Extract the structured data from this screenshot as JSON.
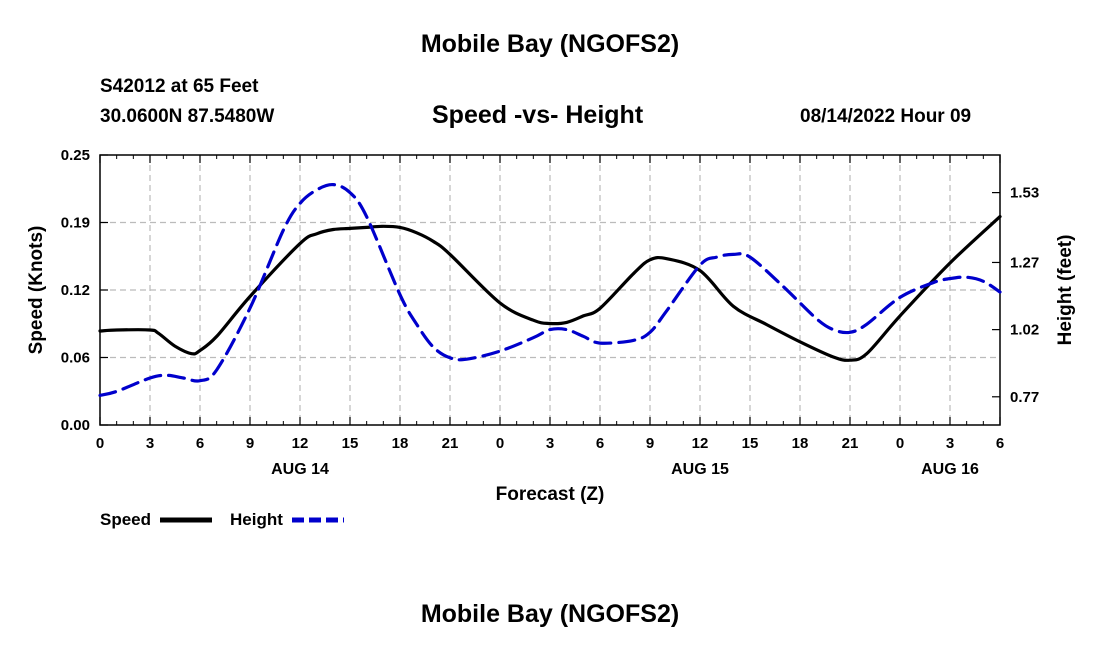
{
  "header": {
    "title": "Mobile Bay (NGOFS2)",
    "station": "S42012 at 65 Feet",
    "coordinates": "30.0600N  87.5480W",
    "subtitle": "Speed -vs- Height",
    "datetime": "08/14/2022 Hour 09"
  },
  "footer": {
    "title": "Mobile Bay (NGOFS2)"
  },
  "legend": {
    "items": [
      {
        "label": "Speed",
        "color": "#000000",
        "style": "solid"
      },
      {
        "label": "Height",
        "color": "#0000cc",
        "style": "dashed"
      }
    ]
  },
  "chart_data": {
    "type": "line",
    "title": "Speed -vs- Height",
    "xlabel": "Forecast (Z)",
    "ylabel": "Speed (Knots)",
    "y2label": "Height (feet)",
    "x_unit": "hours since 08/14 00Z",
    "xlim": [
      0,
      54
    ],
    "ylim": [
      0,
      0.25
    ],
    "y2lim": [
      0.665,
      1.67
    ],
    "grid": true,
    "x_ticks": [
      {
        "x": 0,
        "label": "0"
      },
      {
        "x": 3,
        "label": "3"
      },
      {
        "x": 6,
        "label": "6"
      },
      {
        "x": 9,
        "label": "9"
      },
      {
        "x": 12,
        "label": "12"
      },
      {
        "x": 15,
        "label": "15"
      },
      {
        "x": 18,
        "label": "18"
      },
      {
        "x": 21,
        "label": "21"
      },
      {
        "x": 24,
        "label": "0"
      },
      {
        "x": 27,
        "label": "3"
      },
      {
        "x": 30,
        "label": "6"
      },
      {
        "x": 33,
        "label": "9"
      },
      {
        "x": 36,
        "label": "12"
      },
      {
        "x": 39,
        "label": "15"
      },
      {
        "x": 42,
        "label": "18"
      },
      {
        "x": 45,
        "label": "21"
      },
      {
        "x": 48,
        "label": "0"
      },
      {
        "x": 51,
        "label": "3"
      },
      {
        "x": 54,
        "label": "6"
      }
    ],
    "date_labels": [
      {
        "x": 12,
        "label": "AUG 14"
      },
      {
        "x": 36,
        "label": "AUG 15"
      },
      {
        "x": 51,
        "label": "AUG 16"
      }
    ],
    "y_ticks": [
      "0.00",
      "0.06",
      "0.12",
      "0.19",
      "0.25"
    ],
    "y2_ticks": [
      "0.77",
      "1.02",
      "1.27",
      "1.53"
    ],
    "series": [
      {
        "name": "Speed",
        "axis": "left",
        "color": "#000000",
        "x": [
          0,
          1,
          3,
          3.5,
          4.5,
          5.5,
          6,
          7,
          9,
          12,
          13,
          14,
          15,
          16,
          17,
          18,
          19,
          20,
          21,
          24,
          26,
          27,
          28,
          29,
          30,
          32,
          33,
          34,
          36,
          38,
          40,
          42,
          44,
          45,
          46,
          48,
          51,
          54
        ],
        "values": [
          0.087,
          0.088,
          0.088,
          0.085,
          0.073,
          0.066,
          0.069,
          0.082,
          0.119,
          0.168,
          0.177,
          0.181,
          0.182,
          0.183,
          0.184,
          0.183,
          0.178,
          0.17,
          0.158,
          0.113,
          0.097,
          0.094,
          0.095,
          0.101,
          0.108,
          0.14,
          0.153,
          0.154,
          0.143,
          0.11,
          0.093,
          0.077,
          0.063,
          0.06,
          0.066,
          0.101,
          0.15,
          0.193
        ]
      },
      {
        "name": "Height",
        "axis": "right",
        "color": "#0000cc",
        "x": [
          0,
          1,
          3,
          4,
          5,
          6,
          7,
          9,
          11,
          12,
          13,
          14,
          15,
          16,
          18,
          19,
          20,
          21,
          22,
          24,
          26,
          27,
          28,
          29,
          30,
          32,
          33,
          34,
          36,
          37,
          38,
          39,
          41,
          43,
          44,
          45,
          46,
          48,
          50,
          51,
          52,
          53,
          54
        ],
        "values": [
          0.775,
          0.79,
          0.84,
          0.85,
          0.84,
          0.83,
          0.87,
          1.1,
          1.39,
          1.49,
          1.54,
          1.56,
          1.53,
          1.44,
          1.15,
          1.04,
          0.955,
          0.915,
          0.91,
          0.94,
          0.99,
          1.02,
          1.02,
          0.995,
          0.97,
          0.98,
          1.01,
          1.09,
          1.26,
          1.29,
          1.3,
          1.29,
          1.18,
          1.06,
          1.02,
          1.01,
          1.04,
          1.14,
          1.195,
          1.21,
          1.215,
          1.2,
          1.16
        ]
      }
    ]
  }
}
